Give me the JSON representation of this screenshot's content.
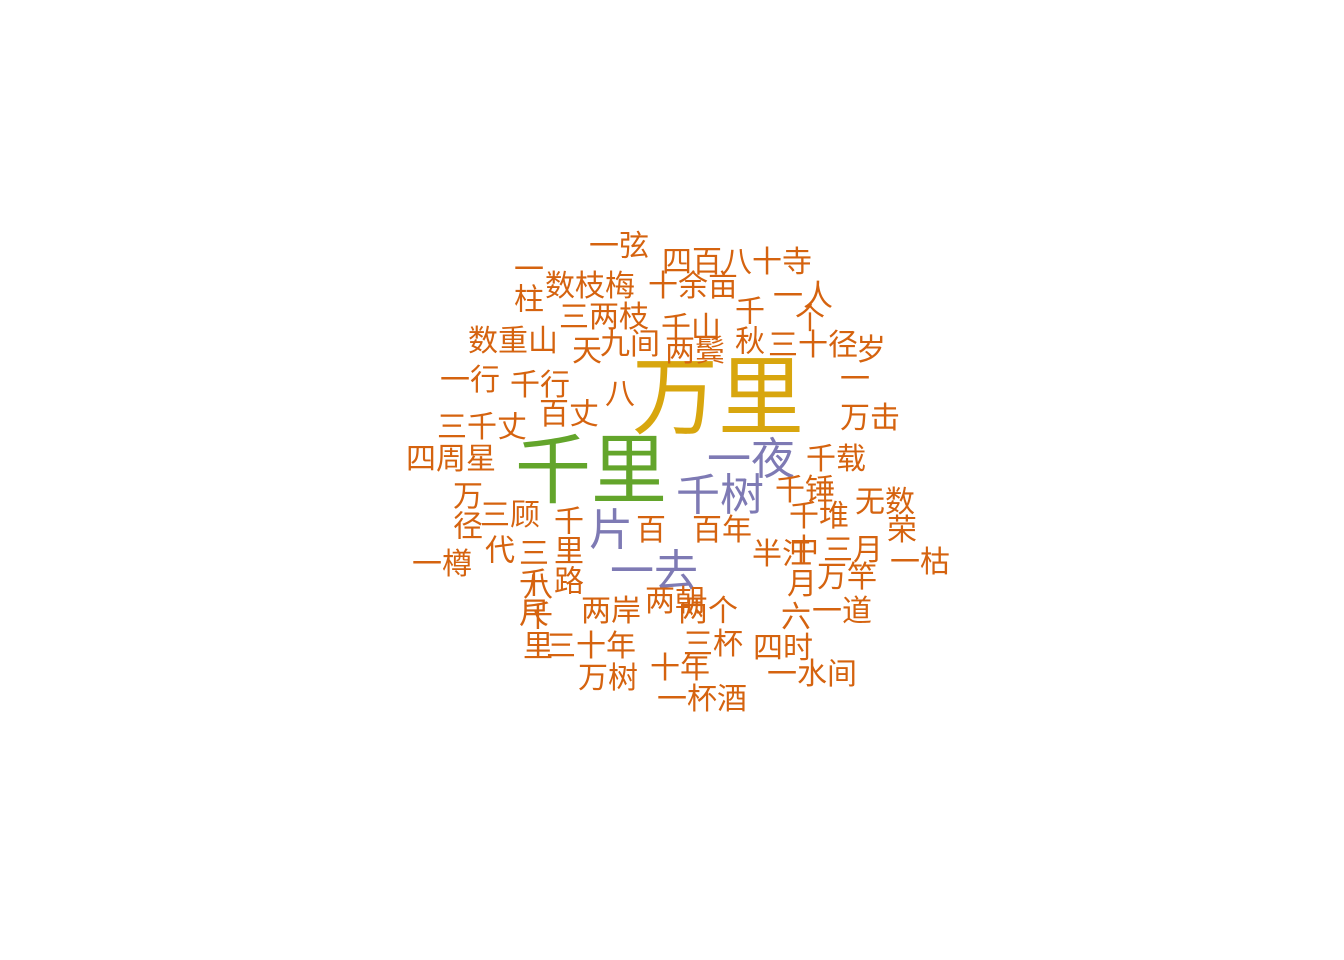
{
  "colors": {
    "gold": "#d8a60e",
    "green": "#63a52b",
    "purple": "#7e7ab4",
    "orange": "#d5630f"
  },
  "words": [
    "万里",
    "千里",
    "一夜",
    "千树",
    "片",
    "一去",
    "一弦",
    "四百八十寺",
    "一柱",
    "数枝梅",
    "十余亩",
    "一人",
    "三两枝",
    "千山",
    "千秋",
    "三十径",
    "岁",
    "数重山",
    "天",
    "九间",
    "两鬓",
    "个",
    "一行",
    "千行",
    "八",
    "一",
    "百丈",
    "三千丈",
    "万击",
    "四周星",
    "千载",
    "千锤",
    "无数",
    "万径",
    "三顾",
    "百",
    "百年",
    "千堆",
    "一樽",
    "代",
    "三千尺",
    "千里路",
    "半江",
    "中",
    "三月",
    "一枯",
    "荣",
    "月",
    "万竿",
    "八千里",
    "两岸",
    "两朝",
    "两个",
    "六",
    "一道",
    "三十年",
    "三杯",
    "四时",
    "十年",
    "万树",
    "一水间",
    "一杯酒"
  ]
}
